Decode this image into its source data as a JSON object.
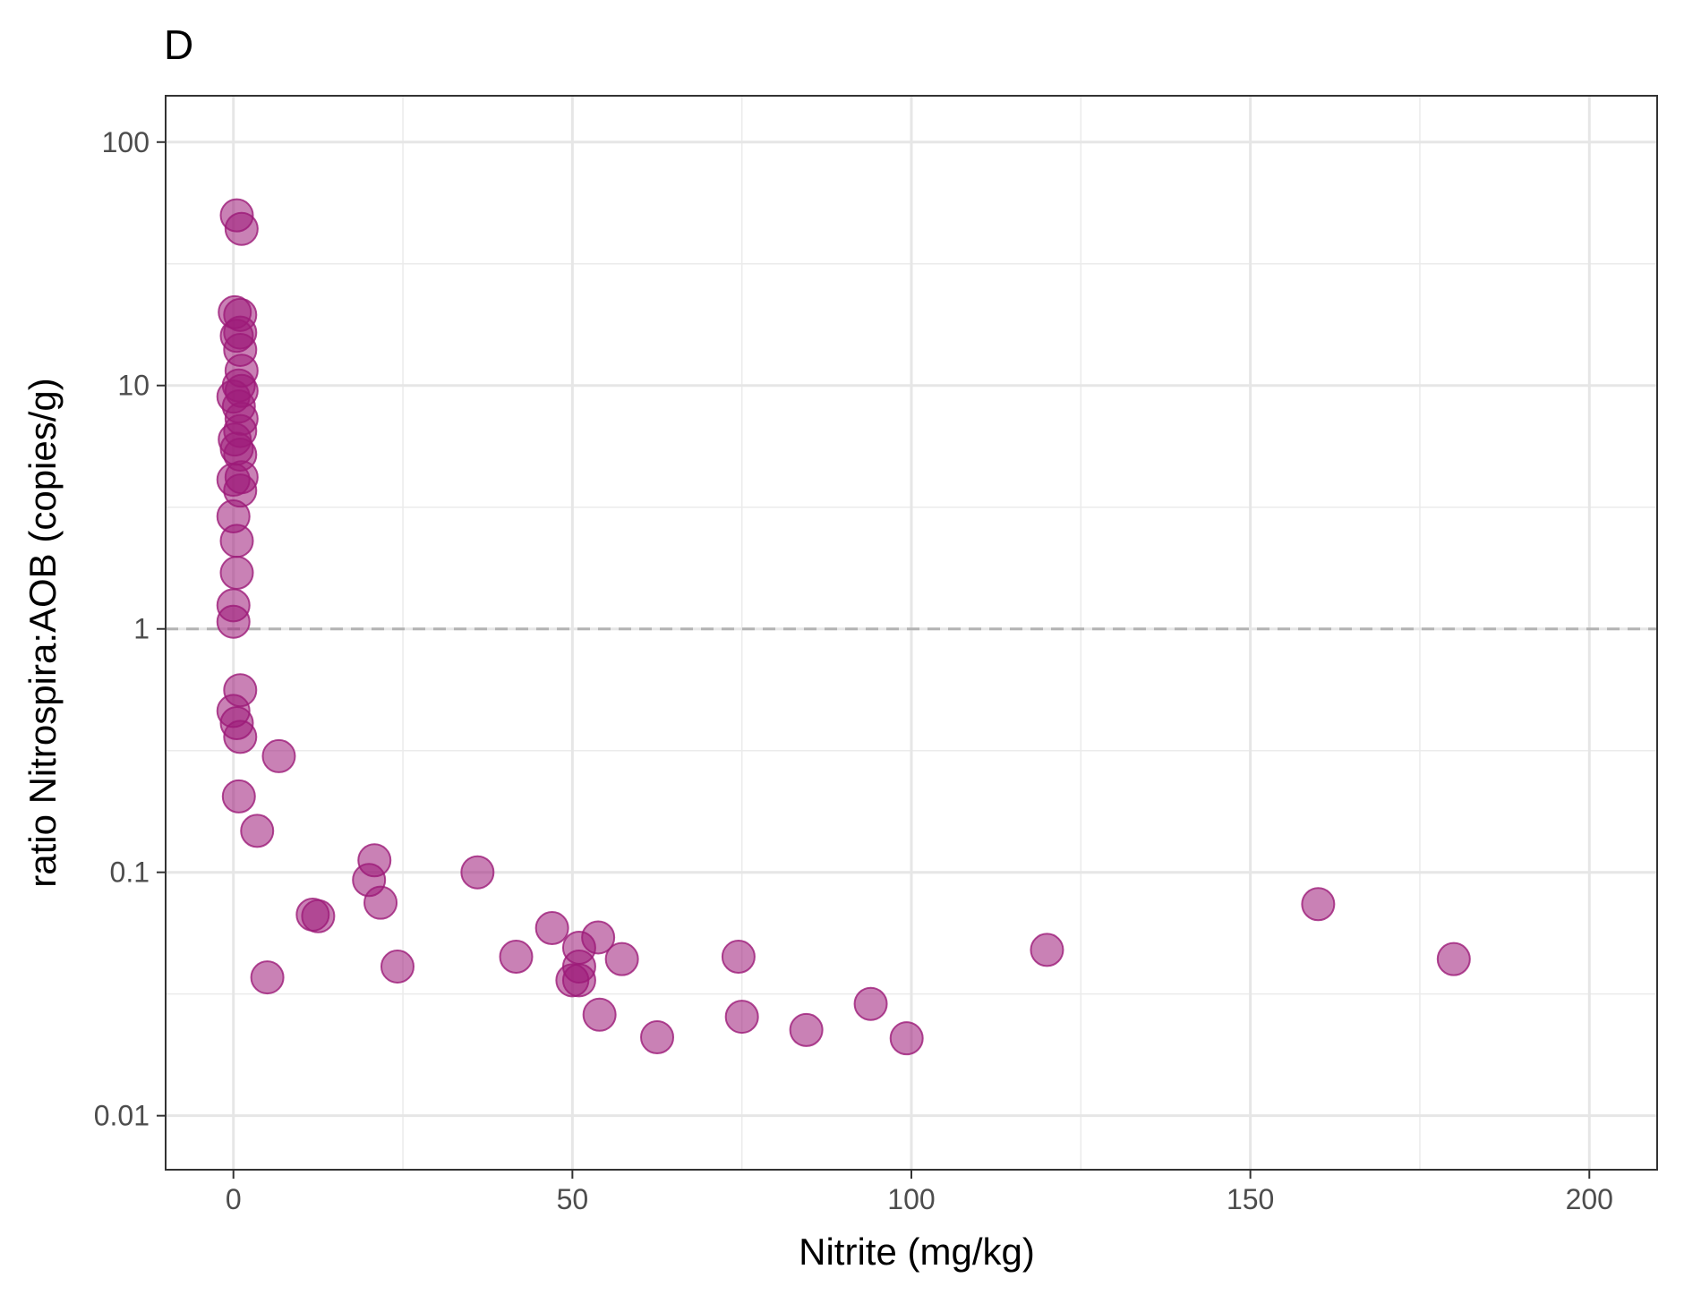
{
  "chart_data": {
    "type": "scatter",
    "panel_label": "D",
    "xlabel": "Nitrite (mg/kg)",
    "ylabel": "ratio Nitrospira:AOB (copies/g)",
    "x_scale": "linear",
    "y_scale": "log10",
    "xlim": [
      -10,
      210
    ],
    "ylim": [
      0.006,
      155
    ],
    "x_ticks": [
      0,
      50,
      100,
      150,
      200
    ],
    "x_tick_labels": [
      "0",
      "50",
      "100",
      "150",
      "200"
    ],
    "y_ticks": [
      0.01,
      0.1,
      1,
      10,
      100
    ],
    "y_tick_labels": [
      "0.01",
      "0.1",
      "1",
      "10",
      "100"
    ],
    "grid": true,
    "reference_line": {
      "y": 1,
      "style": "dashed",
      "color": "#b3b3b3"
    },
    "point_color": "#9c1a78",
    "point_opacity": 0.55,
    "points": [
      {
        "x": 0.5,
        "y": 50
      },
      {
        "x": 1.2,
        "y": 44
      },
      {
        "x": 0.2,
        "y": 20
      },
      {
        "x": 1.0,
        "y": 19.5
      },
      {
        "x": 0.5,
        "y": 16
      },
      {
        "x": 1.0,
        "y": 16.5
      },
      {
        "x": 1.0,
        "y": 14
      },
      {
        "x": 1.2,
        "y": 11.5
      },
      {
        "x": 0.8,
        "y": 10
      },
      {
        "x": 1.2,
        "y": 9.5
      },
      {
        "x": 0.0,
        "y": 9
      },
      {
        "x": 0.8,
        "y": 8.2
      },
      {
        "x": 1.2,
        "y": 7.3
      },
      {
        "x": 1.0,
        "y": 6.5
      },
      {
        "x": 0.2,
        "y": 6
      },
      {
        "x": 0.5,
        "y": 5.5
      },
      {
        "x": 1.0,
        "y": 5.2
      },
      {
        "x": 0.0,
        "y": 4.1
      },
      {
        "x": 1.2,
        "y": 4.2
      },
      {
        "x": 1.0,
        "y": 3.7
      },
      {
        "x": 0.0,
        "y": 2.9
      },
      {
        "x": 0.5,
        "y": 2.3
      },
      {
        "x": 0.5,
        "y": 1.7
      },
      {
        "x": 0.0,
        "y": 1.25
      },
      {
        "x": 0.0,
        "y": 1.07
      },
      {
        "x": 1.0,
        "y": 0.56
      },
      {
        "x": 0.0,
        "y": 0.46
      },
      {
        "x": 0.5,
        "y": 0.41
      },
      {
        "x": 1.0,
        "y": 0.36
      },
      {
        "x": 6.7,
        "y": 0.3
      },
      {
        "x": 0.8,
        "y": 0.205
      },
      {
        "x": 3.5,
        "y": 0.148
      },
      {
        "x": 20.8,
        "y": 0.112
      },
      {
        "x": 20.0,
        "y": 0.093
      },
      {
        "x": 21.7,
        "y": 0.075
      },
      {
        "x": 36.0,
        "y": 0.1
      },
      {
        "x": 11.7,
        "y": 0.067
      },
      {
        "x": 12.5,
        "y": 0.066
      },
      {
        "x": 5.0,
        "y": 0.037
      },
      {
        "x": 24.2,
        "y": 0.041
      },
      {
        "x": 41.7,
        "y": 0.045
      },
      {
        "x": 47.0,
        "y": 0.059
      },
      {
        "x": 51.0,
        "y": 0.049
      },
      {
        "x": 53.8,
        "y": 0.054
      },
      {
        "x": 57.3,
        "y": 0.044
      },
      {
        "x": 51.0,
        "y": 0.041
      },
      {
        "x": 50.0,
        "y": 0.036
      },
      {
        "x": 51.0,
        "y": 0.036
      },
      {
        "x": 54.0,
        "y": 0.026
      },
      {
        "x": 62.5,
        "y": 0.021
      },
      {
        "x": 74.5,
        "y": 0.045
      },
      {
        "x": 75.0,
        "y": 0.0255
      },
      {
        "x": 84.5,
        "y": 0.0225
      },
      {
        "x": 94.0,
        "y": 0.0288
      },
      {
        "x": 99.3,
        "y": 0.0208
      },
      {
        "x": 120.0,
        "y": 0.048
      },
      {
        "x": 160.0,
        "y": 0.074
      },
      {
        "x": 180.0,
        "y": 0.044
      }
    ]
  }
}
